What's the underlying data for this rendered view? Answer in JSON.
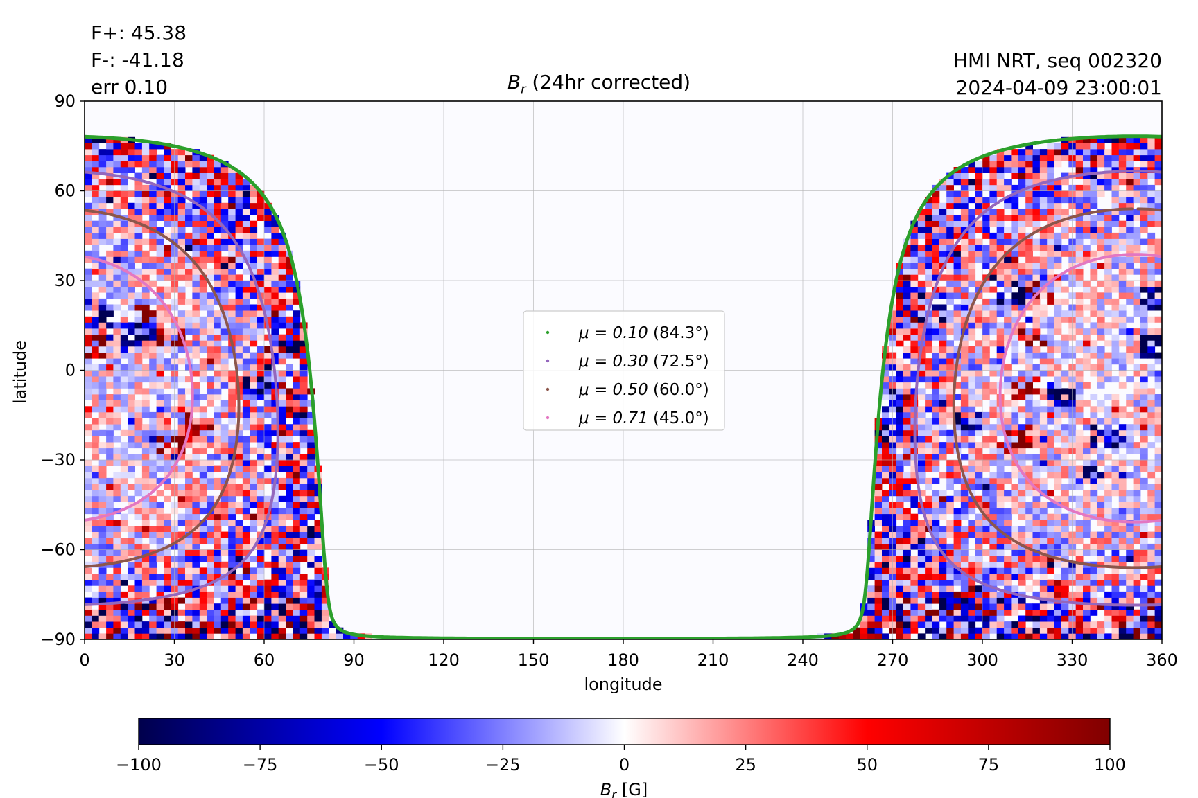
{
  "header": {
    "stats_lines": [
      "F+: 45.38",
      "F-: -41.18",
      "err 0.10"
    ],
    "source_lines": [
      "HMI NRT, seq 002320",
      "2024-04-09 23:00:01"
    ]
  },
  "chart_data": {
    "type": "heatmap",
    "title_symbol": "B",
    "title_subscript": "r",
    "title_suffix": " (24hr corrected)",
    "xlabel": "longitude",
    "ylabel": "latitude",
    "xlim": [
      0,
      360
    ],
    "ylim": [
      -90,
      90
    ],
    "xticks": [
      0,
      30,
      60,
      90,
      120,
      150,
      180,
      210,
      240,
      270,
      300,
      330,
      360
    ],
    "xtick_labels": [
      "0",
      "30",
      "60",
      "90",
      "120",
      "150",
      "180",
      "210",
      "240",
      "270",
      "300",
      "330",
      "360"
    ],
    "yticks": [
      -90,
      -60,
      -30,
      0,
      30,
      60,
      90
    ],
    "ytick_labels": [
      "−90",
      "−60",
      "−30",
      "0",
      "30",
      "60",
      "90"
    ],
    "grid": true,
    "disk_center_longitude": 351,
    "disk_center_latitude": -6,
    "legend_position": "center",
    "series": [
      {
        "name_mu": "μ = 0.10",
        "name_angle": " (84.3°)",
        "mu": 0.1,
        "angle_deg": 84.3,
        "color": "#2ca02c"
      },
      {
        "name_mu": "μ = 0.30",
        "name_angle": " (72.5°)",
        "mu": 0.3,
        "angle_deg": 72.5,
        "color": "#9467bd"
      },
      {
        "name_mu": "μ = 0.50",
        "name_angle": " (60.0°)",
        "mu": 0.5,
        "angle_deg": 60.0,
        "color": "#8c564b"
      },
      {
        "name_mu": "μ = 0.71",
        "name_angle": " (45.0°)",
        "mu": 0.71,
        "angle_deg": 45.0,
        "color": "#e377c2"
      }
    ],
    "colorbar": {
      "label_symbol": "B",
      "label_subscript": "r",
      "label_suffix": " [G]",
      "range": [
        -100,
        100
      ],
      "ticks": [
        -100,
        -75,
        -50,
        -25,
        0,
        25,
        50,
        75,
        100
      ],
      "tick_labels": [
        "−100",
        "−75",
        "−50",
        "−25",
        "0",
        "25",
        "50",
        "75",
        "100"
      ],
      "colormap": "seismic",
      "colors": [
        "#00004c",
        "#0000ff",
        "#ffffff",
        "#ff0000",
        "#800000"
      ]
    },
    "active_regions": [
      {
        "lon": 22,
        "lat": 19,
        "polarity": "positive"
      },
      {
        "lon": 28,
        "lat": 11,
        "polarity": "positive"
      },
      {
        "lon": 5,
        "lat": 18,
        "polarity": "negative"
      },
      {
        "lon": 18,
        "lat": 12,
        "polarity": "negative"
      },
      {
        "lon": 2,
        "lat": 8,
        "polarity": "positive"
      },
      {
        "lon": 38,
        "lat": -18,
        "polarity": "positive"
      },
      {
        "lon": 30,
        "lat": -25,
        "polarity": "positive"
      },
      {
        "lon": 58,
        "lat": -5,
        "polarity": "negative"
      },
      {
        "lon": 70,
        "lat": 7,
        "polarity": "negative"
      },
      {
        "lon": 74,
        "lat": -15,
        "polarity": "negative"
      },
      {
        "lon": 281,
        "lat": 19,
        "polarity": "positive"
      },
      {
        "lon": 284,
        "lat": 19,
        "polarity": "negative"
      },
      {
        "lon": 310,
        "lat": 26,
        "polarity": "negative"
      },
      {
        "lon": 316,
        "lat": 12,
        "polarity": "positive"
      },
      {
        "lon": 320,
        "lat": 27,
        "polarity": "positive"
      },
      {
        "lon": 314,
        "lat": -7,
        "polarity": "positive"
      },
      {
        "lon": 327,
        "lat": -8,
        "polarity": "negative"
      },
      {
        "lon": 312,
        "lat": -22,
        "polarity": "positive"
      },
      {
        "lon": 296,
        "lat": -17,
        "polarity": "negative"
      },
      {
        "lon": 342,
        "lat": -22,
        "polarity": "negative"
      },
      {
        "lon": 336,
        "lat": -35,
        "polarity": "negative"
      },
      {
        "lon": 357,
        "lat": 8,
        "polarity": "negative"
      },
      {
        "lon": 357,
        "lat": 24,
        "polarity": "negative"
      }
    ]
  }
}
